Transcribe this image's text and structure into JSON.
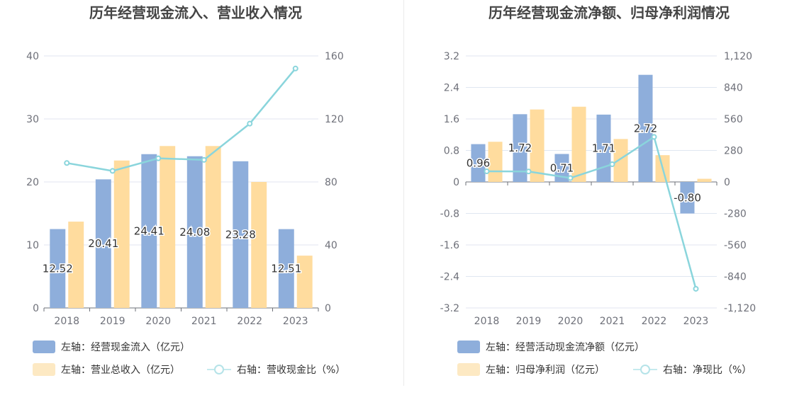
{
  "chart_data": [
    {
      "type": "bar",
      "title": "历年经营现金流入、营业收入情况",
      "categories": [
        "2018",
        "2019",
        "2020",
        "2021",
        "2022",
        "2023"
      ],
      "left_axis": {
        "ylim": [
          0,
          40
        ],
        "ticks": [
          "40",
          "30",
          "20",
          "10",
          "0"
        ]
      },
      "right_axis": {
        "ylim": [
          0,
          160
        ],
        "ticks": [
          "160",
          "120",
          "80",
          "40",
          "0"
        ]
      },
      "series": [
        {
          "name": "左轴：经营现金流入（亿元）",
          "type": "bar",
          "axis": "left",
          "color": "#8eaedb",
          "values": [
            12.52,
            20.41,
            24.41,
            24.08,
            23.28,
            12.51
          ],
          "labels": [
            "12.52",
            "20.41",
            "24.41",
            "24.08",
            "23.28",
            "12.51"
          ]
        },
        {
          "name": "左轴：营业总收入（亿元）",
          "type": "bar",
          "axis": "left",
          "color": "#ffdc9e",
          "values": [
            13.7,
            23.4,
            25.7,
            25.7,
            20.0,
            8.3
          ]
        },
        {
          "name": "右轴：营收现金比（%）",
          "type": "line",
          "axis": "right",
          "color": "#8ad5dc",
          "values": [
            92,
            87,
            95,
            94,
            117,
            152
          ]
        }
      ]
    },
    {
      "type": "bar",
      "title": "历年经营现金流净额、归母净利润情况",
      "categories": [
        "2018",
        "2019",
        "2020",
        "2021",
        "2022",
        "2023"
      ],
      "left_axis": {
        "ylim": [
          -3.2,
          3.2
        ],
        "ticks": [
          "3.2",
          "2.4",
          "1.6",
          "0.8",
          "0",
          "-0.8",
          "-1.6",
          "-2.4",
          "-3.2"
        ]
      },
      "right_axis": {
        "ylim": [
          -1120,
          1120
        ],
        "ticks": [
          "1,120",
          "840",
          "560",
          "280",
          "0",
          "-280",
          "-560",
          "-840",
          "-1,120"
        ]
      },
      "series": [
        {
          "name": "左轴：经营活动现金流净额（亿元）",
          "type": "bar",
          "axis": "left",
          "color": "#8eaedb",
          "values": [
            0.96,
            1.72,
            0.71,
            1.71,
            2.72,
            -0.8
          ],
          "labels": [
            "0.96",
            "1.72",
            "0.71",
            "1.71",
            "2.72",
            "-0.80"
          ]
        },
        {
          "name": "左轴：归母净利润（亿元）",
          "type": "bar",
          "axis": "left",
          "color": "#ffdc9e",
          "values": [
            1.02,
            1.84,
            1.91,
            1.09,
            0.68,
            0.08
          ]
        },
        {
          "name": "右轴：净现比（%）",
          "type": "line",
          "axis": "right",
          "color": "#8ad5dc",
          "values": [
            94,
            93,
            35,
            157,
            400,
            -950
          ]
        }
      ]
    }
  ]
}
